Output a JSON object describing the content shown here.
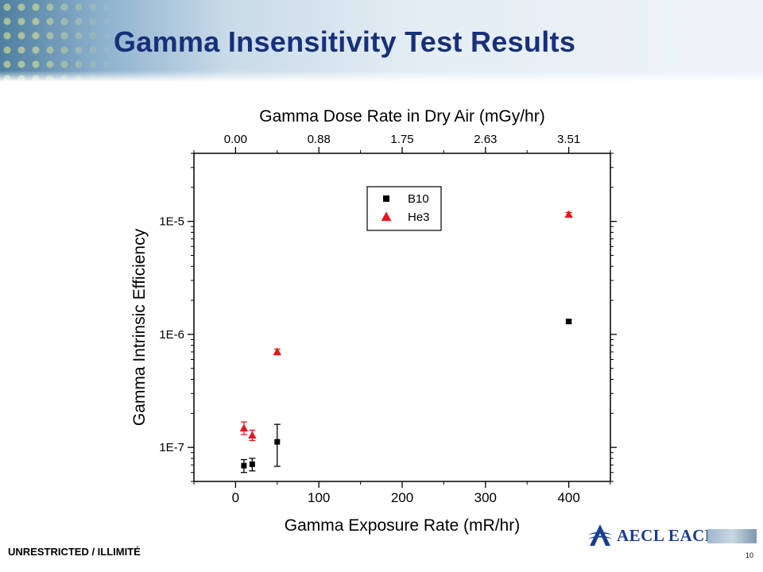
{
  "slide": {
    "title": "Gamma Insensitivity Test Results",
    "footer_label": "UNRESTRICTED / ILLIMITÉ",
    "logo_text": "AECL EACL",
    "page_number": "10"
  },
  "colors": {
    "title": "#17307a",
    "b10": "#000000",
    "he3": "#e8161c",
    "logo": "#1a3e8c"
  },
  "chart_data": {
    "type": "scatter",
    "title": "",
    "xlabel": "Gamma Exposure Rate (mR/hr)",
    "ylabel": "Gamma Intrinsic Efficiency",
    "x2label": "Gamma Dose Rate in Dry Air (mGy/hr)",
    "xlim": [
      -50,
      450
    ],
    "ylim": [
      5e-08,
      4e-05
    ],
    "y_scale": "log",
    "x_ticks": [
      0,
      100,
      200,
      300,
      400
    ],
    "x_tick_labels": [
      "0",
      "100",
      "200",
      "300",
      "400"
    ],
    "y_ticks": [
      1e-07,
      1e-06,
      1e-05
    ],
    "y_tick_labels": [
      "1E-7",
      "1E-6",
      "1E-5"
    ],
    "x2_tick_positions": [
      0,
      100,
      200,
      300,
      400
    ],
    "x2_tick_labels": [
      "0.00",
      "0.88",
      "1.75",
      "2.63",
      "3.51"
    ],
    "legend_position": "top-center",
    "grid": false,
    "series": [
      {
        "name": "B10",
        "marker": "square",
        "color": "#000000",
        "points": [
          {
            "x": 10,
            "y": 6.9e-08,
            "lo": 6e-08,
            "hi": 7.8e-08
          },
          {
            "x": 20,
            "y": 7.1e-08,
            "lo": 6.2e-08,
            "hi": 8e-08
          },
          {
            "x": 50,
            "y": 1.12e-07,
            "lo": 6.8e-08,
            "hi": 1.6e-07
          },
          {
            "x": 400,
            "y": 1.3e-06,
            "lo": 1.26e-06,
            "hi": 1.34e-06
          }
        ]
      },
      {
        "name": "He3",
        "marker": "triangle",
        "color": "#e8161c",
        "points": [
          {
            "x": 10,
            "y": 1.48e-07,
            "lo": 1.3e-07,
            "hi": 1.68e-07
          },
          {
            "x": 20,
            "y": 1.28e-07,
            "lo": 1.15e-07,
            "hi": 1.42e-07
          },
          {
            "x": 50,
            "y": 7e-07,
            "lo": 6.6e-07,
            "hi": 7.4e-07
          },
          {
            "x": 400,
            "y": 1.15e-05,
            "lo": 1.1e-05,
            "hi": 1.2e-05
          }
        ]
      }
    ]
  }
}
